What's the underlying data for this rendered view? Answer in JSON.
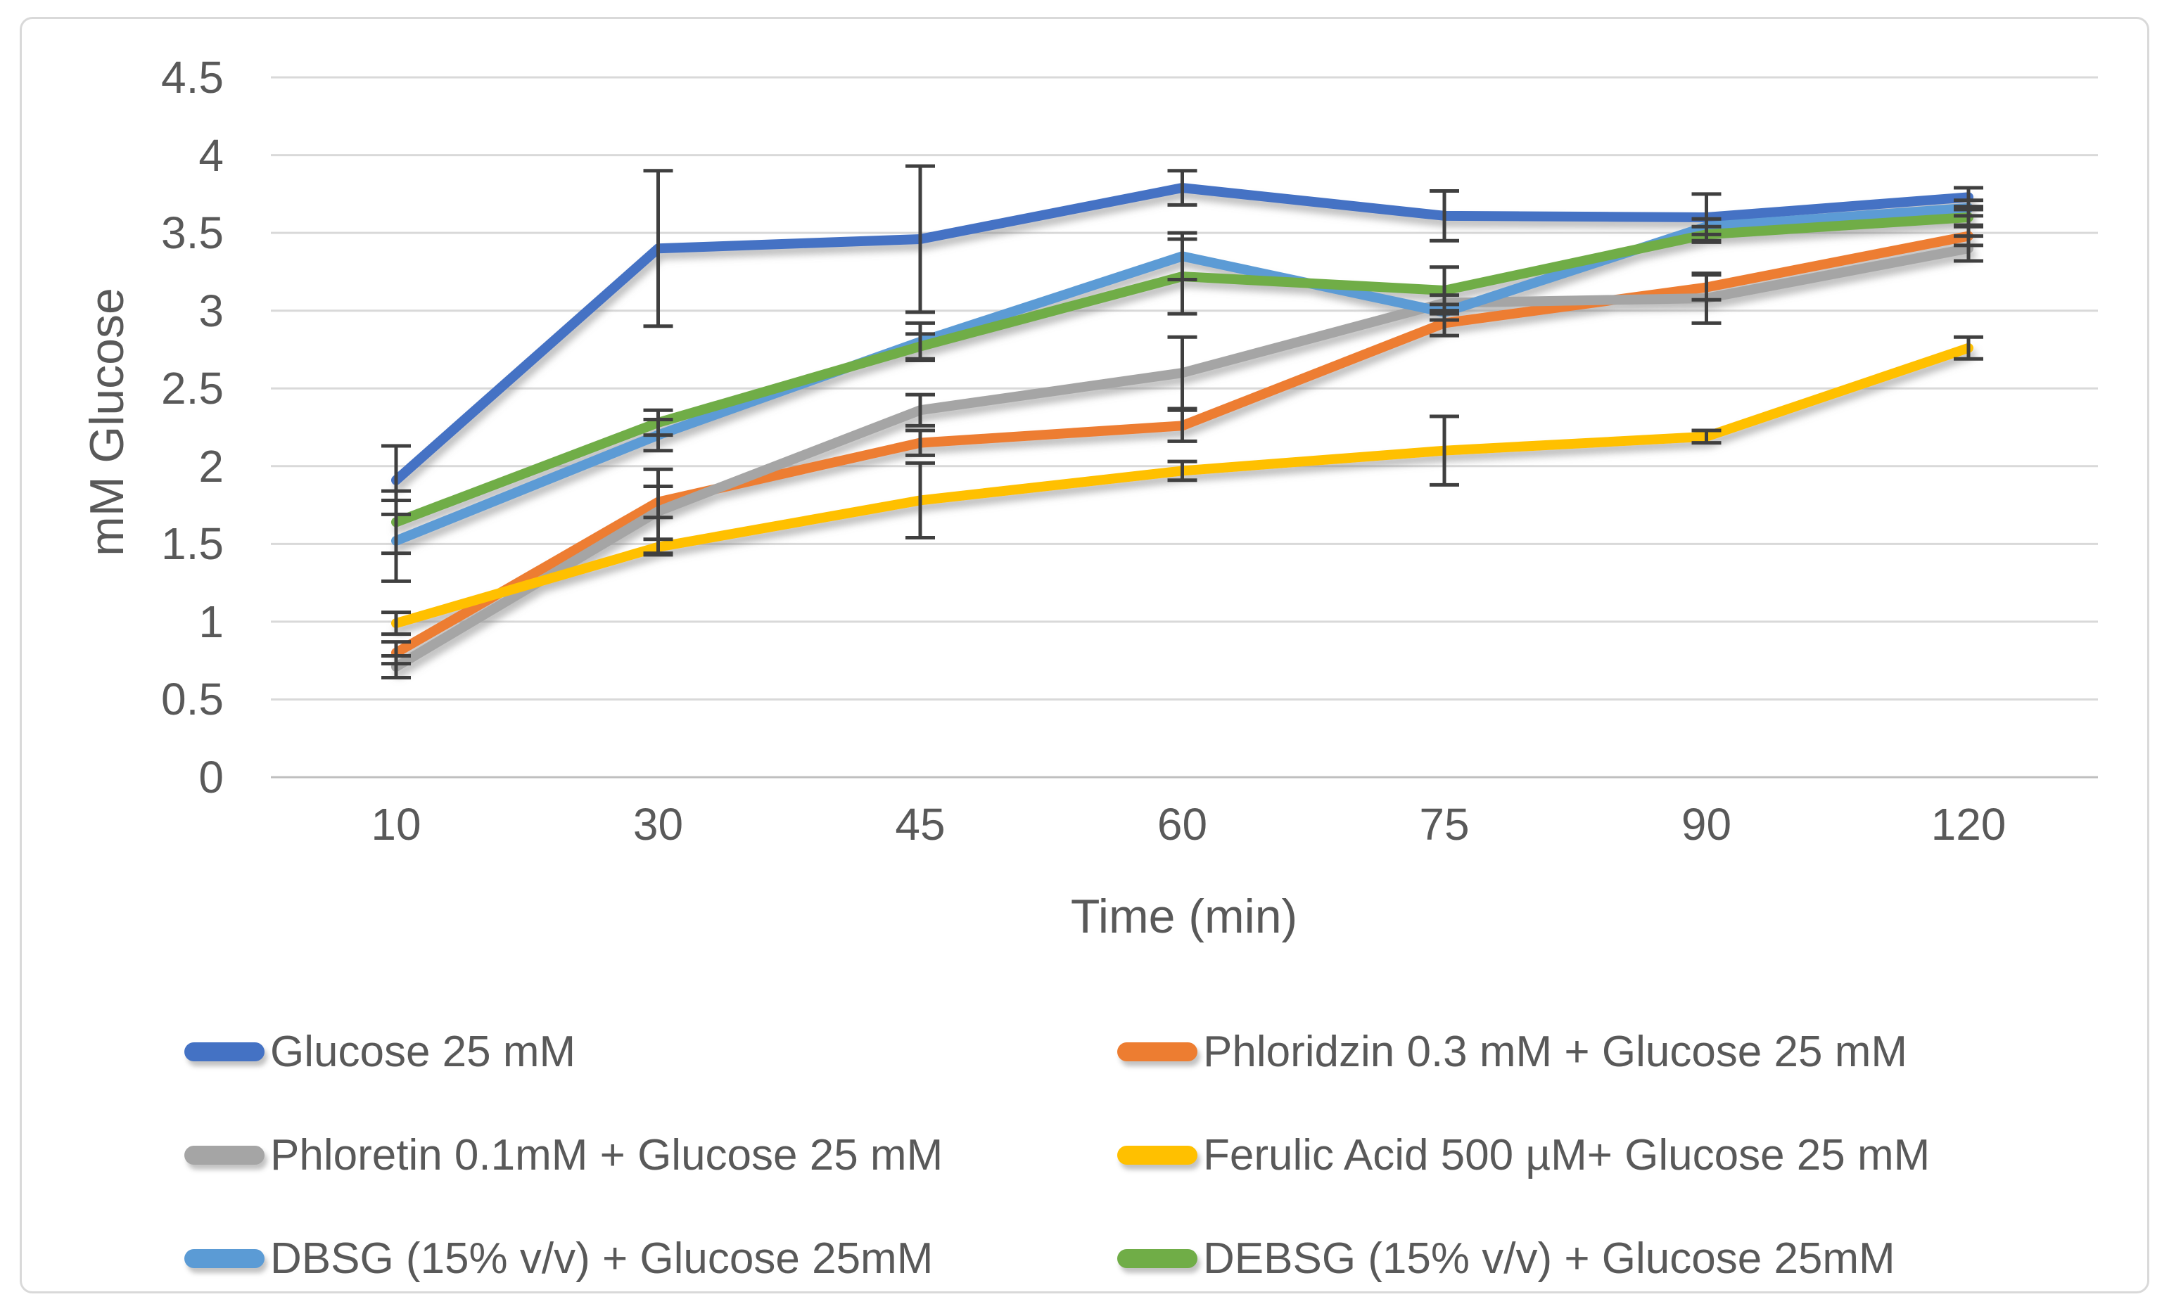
{
  "chart_data": {
    "type": "line",
    "title": "",
    "xlabel": "Time (min)",
    "ylabel": "mM Glucose",
    "categories": [
      "10",
      "30",
      "45",
      "60",
      "75",
      "90",
      "120"
    ],
    "ylim": [
      0,
      4.5
    ],
    "ytick_step": 0.5,
    "ytick_labels": [
      "0",
      "0.5",
      "1",
      "1.5",
      "2",
      "2.5",
      "3",
      "3.5",
      "4",
      "4.5"
    ],
    "grid": true,
    "legend_position": "bottom",
    "error_bars": true,
    "series": [
      {
        "name": "Glucose 25 mM",
        "color": "#4472C4",
        "values": [
          1.91,
          3.4,
          3.46,
          3.79,
          3.61,
          3.6,
          3.73
        ],
        "errors": [
          0.22,
          0.5,
          0.47,
          0.11,
          0.16,
          0.15,
          0.06
        ]
      },
      {
        "name": "Phloridzin 0.3 mM  + Glucose 25 mM",
        "color": "#ED7D31",
        "values": [
          0.8,
          1.77,
          2.15,
          2.26,
          2.92,
          3.15,
          3.48
        ],
        "errors": [
          0.07,
          0.1,
          0.08,
          0.1,
          0.08,
          0.08,
          0.06
        ]
      },
      {
        "name": "Phloretin 0.1mM + Glucose 25 mM",
        "color": "#A5A5A5",
        "values": [
          0.71,
          1.71,
          2.36,
          2.6,
          3.05,
          3.08,
          3.4
        ],
        "errors": [
          0.07,
          0.27,
          0.1,
          0.23,
          0.05,
          0.16,
          0.08
        ]
      },
      {
        "name": "Ferulic Acid 500 µM+ Glucose 25 mM",
        "color": "#FFC000",
        "values": [
          0.99,
          1.48,
          1.78,
          1.97,
          2.1,
          2.19,
          2.76
        ],
        "errors": [
          0.07,
          0.05,
          0.24,
          0.06,
          0.22,
          0.04,
          0.07
        ]
      },
      {
        "name": "DBSG (15% v/v) + Glucose 25mM",
        "color": "#5B9BD5",
        "values": [
          1.52,
          2.2,
          2.8,
          3.35,
          2.99,
          3.54,
          3.66
        ],
        "errors": [
          0.26,
          0.1,
          0.12,
          0.15,
          0.05,
          0.05,
          0.05
        ]
      },
      {
        "name": "DEBSG (15% v/v) + Glucose 25mM",
        "color": "#70AD47",
        "values": [
          1.64,
          2.28,
          2.77,
          3.22,
          3.13,
          3.49,
          3.6
        ],
        "errors": [
          0.2,
          0.08,
          0.08,
          0.24,
          0.15,
          0.05,
          0.05
        ]
      }
    ],
    "colors": {
      "gridline": "#D9D9D9",
      "axis_line": "#BFBFBF",
      "error_bar": "#3F3F3F",
      "text": "#595959",
      "frame_border": "#D9D9D9",
      "background": "#FFFFFF"
    }
  }
}
